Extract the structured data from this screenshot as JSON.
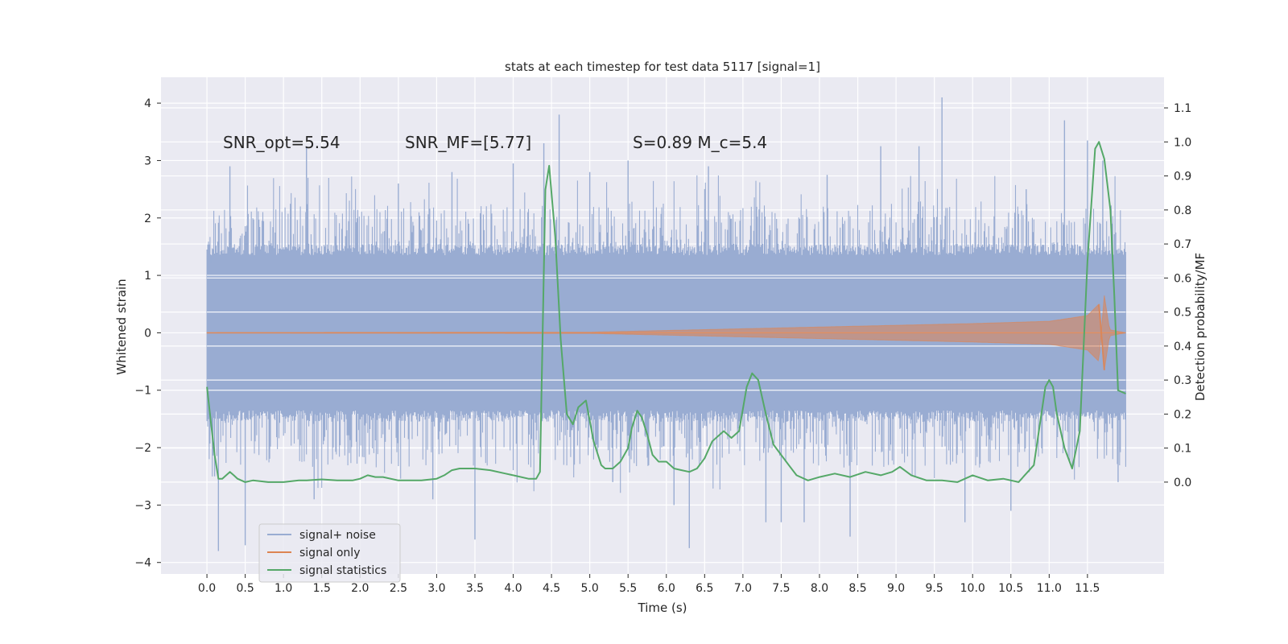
{
  "chart_data": {
    "type": "line",
    "title": "stats at each timestep for test data 5117 [signal=1]",
    "xlabel": "Time (s)",
    "ylabel_left": "Whitened strain",
    "ylabel_right": "Detection probability/MF",
    "xlim": [
      -0.6,
      12.5
    ],
    "ylim_left": [
      -4.2,
      4.45
    ],
    "ylim_right": [
      -0.27,
      1.19
    ],
    "x_ticks": [
      0.0,
      0.5,
      1.0,
      1.5,
      2.0,
      2.5,
      3.0,
      3.5,
      4.0,
      4.5,
      5.0,
      5.5,
      6.0,
      6.5,
      7.0,
      7.5,
      8.0,
      8.5,
      9.0,
      9.5,
      10.0,
      10.5,
      11.0,
      11.5
    ],
    "x_tick_labels": [
      "0.0",
      "0.5",
      "1.0",
      "1.5",
      "2.0",
      "2.5",
      "3.0",
      "3.5",
      "4.0",
      "4.5",
      "5.0",
      "5.5",
      "6.0",
      "6.5",
      "7.0",
      "7.5",
      "8.0",
      "8.5",
      "9.0",
      "9.5",
      "10.0",
      "10.5",
      "11.0",
      "11.5"
    ],
    "y_left_ticks": [
      -4,
      -3,
      -2,
      -1,
      0,
      1,
      2,
      3,
      4
    ],
    "y_left_tick_labels": [
      "−4",
      "−3",
      "−2",
      "−1",
      "0",
      "1",
      "2",
      "3",
      "4"
    ],
    "y_right_ticks": [
      0.0,
      0.1,
      0.2,
      0.3,
      0.4,
      0.5,
      0.6,
      0.7,
      0.8,
      0.9,
      1.0,
      1.1
    ],
    "y_right_tick_labels": [
      "0.0",
      "0.1",
      "0.2",
      "0.3",
      "0.4",
      "0.5",
      "0.6",
      "0.7",
      "0.8",
      "0.9",
      "1.0",
      "1.1"
    ],
    "grid": true,
    "legend_position": "lower-left",
    "colors": {
      "background": "#eaeaf2",
      "grid": "#ffffff",
      "noise": "#99acd2",
      "signal": "#dd8452",
      "stats": "#55a868"
    },
    "annotations": [
      {
        "text": "SNR_opt=5.54",
        "x": 0.2,
        "y": 3.25
      },
      {
        "text": "SNR_MF=[5.77]",
        "x": 2.6,
        "y": 3.25
      },
      {
        "text": "S=0.89   M_c=5.4",
        "x": 5.6,
        "y": 3.25
      }
    ],
    "series": [
      {
        "name": "signal+ noise",
        "type": "noise",
        "x_range": [
          0.0,
          12.0
        ],
        "core_amplitude": 1.35,
        "peaks": [
          [
            0.05,
            1.2
          ],
          [
            0.1,
            -2.5
          ],
          [
            0.15,
            -3.8
          ],
          [
            0.3,
            2.9
          ],
          [
            0.5,
            -3.7
          ],
          [
            1.3,
            3.25
          ],
          [
            1.4,
            -2.9
          ],
          [
            2.5,
            2.6
          ],
          [
            2.95,
            -2.9
          ],
          [
            3.2,
            2.8
          ],
          [
            3.5,
            -3.6
          ],
          [
            4.0,
            2.95
          ],
          [
            4.4,
            3.3
          ],
          [
            4.6,
            3.8
          ],
          [
            5.0,
            2.8
          ],
          [
            5.3,
            -2.6
          ],
          [
            5.5,
            3.0
          ],
          [
            6.1,
            -3.0
          ],
          [
            6.3,
            -3.75
          ],
          [
            6.55,
            2.9
          ],
          [
            7.3,
            -3.3
          ],
          [
            7.5,
            -3.3
          ],
          [
            7.8,
            -3.3
          ],
          [
            8.1,
            2.75
          ],
          [
            8.4,
            -3.55
          ],
          [
            8.8,
            3.25
          ],
          [
            9.3,
            3.25
          ],
          [
            9.6,
            4.1
          ],
          [
            9.9,
            -3.3
          ],
          [
            10.5,
            -3.1
          ],
          [
            10.7,
            2.5
          ],
          [
            11.2,
            3.7
          ],
          [
            11.5,
            3.35
          ],
          [
            11.7,
            3.0
          ],
          [
            11.9,
            -2.6
          ]
        ]
      },
      {
        "name": "signal only",
        "type": "chirp",
        "x_range": [
          0.0,
          12.0
        ],
        "amplitude_envelope": [
          [
            0.0,
            0.005
          ],
          [
            5.0,
            0.01
          ],
          [
            6.0,
            0.04
          ],
          [
            7.0,
            0.07
          ],
          [
            8.0,
            0.1
          ],
          [
            9.0,
            0.13
          ],
          [
            10.0,
            0.16
          ],
          [
            11.0,
            0.2
          ],
          [
            11.5,
            0.3
          ],
          [
            11.65,
            0.5
          ],
          [
            11.72,
            -0.65
          ],
          [
            11.8,
            0.05
          ],
          [
            12.0,
            0.0
          ]
        ]
      },
      {
        "name": "signal statistics",
        "type": "line",
        "axis": "right",
        "x": [
          0.0,
          0.05,
          0.1,
          0.15,
          0.2,
          0.3,
          0.35,
          0.4,
          0.5,
          0.6,
          0.8,
          1.0,
          1.2,
          1.3,
          1.5,
          1.7,
          1.9,
          2.0,
          2.1,
          2.2,
          2.3,
          2.5,
          2.6,
          2.8,
          3.0,
          3.1,
          3.2,
          3.3,
          3.5,
          3.7,
          3.9,
          4.0,
          4.2,
          4.3,
          4.35,
          4.42,
          4.47,
          4.55,
          4.62,
          4.7,
          4.78,
          4.85,
          4.95,
          5.05,
          5.15,
          5.2,
          5.3,
          5.4,
          5.5,
          5.55,
          5.62,
          5.68,
          5.75,
          5.82,
          5.9,
          6.0,
          6.1,
          6.2,
          6.3,
          6.4,
          6.5,
          6.6,
          6.75,
          6.85,
          6.95,
          7.05,
          7.12,
          7.2,
          7.3,
          7.4,
          7.5,
          7.6,
          7.7,
          7.85,
          8.0,
          8.2,
          8.4,
          8.6,
          8.8,
          8.95,
          9.05,
          9.2,
          9.4,
          9.6,
          9.8,
          10.0,
          10.2,
          10.4,
          10.6,
          10.8,
          10.95,
          11.0,
          11.05,
          11.1,
          11.2,
          11.3,
          11.4,
          11.5,
          11.6,
          11.65,
          11.72,
          11.8,
          11.85,
          11.9,
          12.0
        ],
        "values": [
          0.28,
          0.18,
          0.08,
          0.01,
          0.01,
          0.03,
          0.02,
          0.01,
          0.0,
          0.005,
          0.0,
          0.0,
          0.005,
          0.005,
          0.008,
          0.005,
          0.005,
          0.01,
          0.02,
          0.015,
          0.015,
          0.005,
          0.005,
          0.005,
          0.01,
          0.02,
          0.035,
          0.04,
          0.04,
          0.035,
          0.025,
          0.02,
          0.01,
          0.01,
          0.03,
          0.86,
          0.93,
          0.72,
          0.42,
          0.2,
          0.17,
          0.22,
          0.24,
          0.12,
          0.05,
          0.04,
          0.04,
          0.06,
          0.1,
          0.16,
          0.21,
          0.19,
          0.14,
          0.08,
          0.06,
          0.06,
          0.04,
          0.035,
          0.03,
          0.04,
          0.07,
          0.12,
          0.15,
          0.13,
          0.15,
          0.28,
          0.32,
          0.3,
          0.2,
          0.11,
          0.08,
          0.05,
          0.02,
          0.005,
          0.015,
          0.025,
          0.015,
          0.03,
          0.02,
          0.03,
          0.045,
          0.02,
          0.005,
          0.005,
          0.0,
          0.02,
          0.005,
          0.01,
          0.0,
          0.05,
          0.28,
          0.3,
          0.28,
          0.2,
          0.1,
          0.04,
          0.15,
          0.65,
          0.98,
          1.0,
          0.95,
          0.8,
          0.55,
          0.27,
          0.26
        ]
      }
    ]
  }
}
